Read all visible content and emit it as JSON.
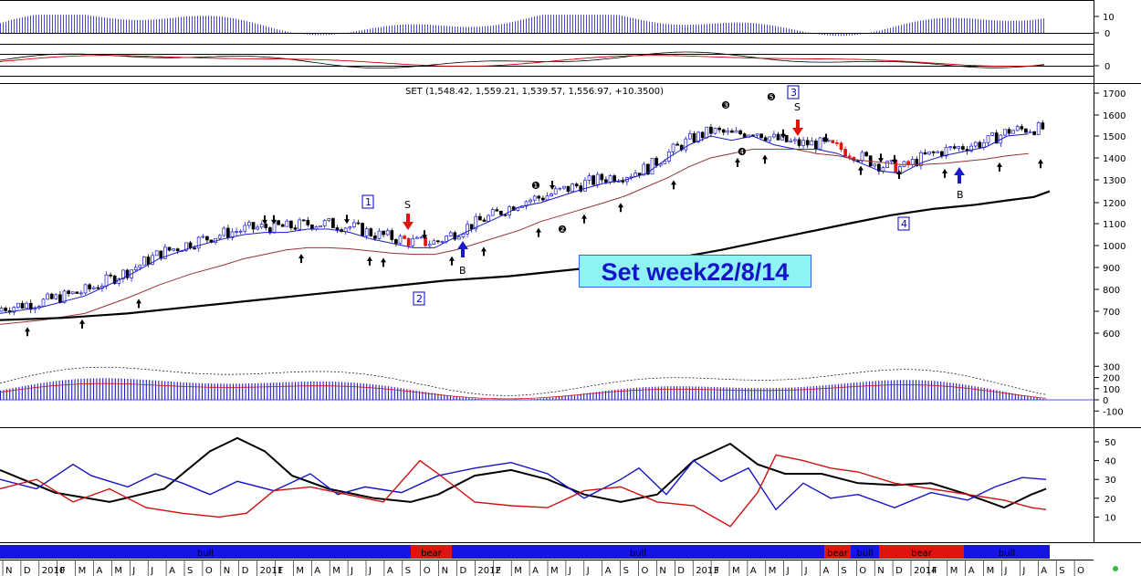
{
  "overlay_title": "Set week22/8/14",
  "chart_data": [
    {
      "type": "bar",
      "panel": "top-histogram",
      "yticks": [
        0,
        10
      ]
    },
    {
      "type": "line",
      "panel": "oscillator",
      "yticks": [
        0
      ],
      "series_colors": [
        "#000000",
        "#cc0000"
      ]
    },
    {
      "type": "line",
      "panel": "price",
      "title": "SET (1,548.42, 1,559.21, 1,539.57, 1,556.97, +10.3500)",
      "ylim": [
        560,
        1720
      ],
      "yticks": [
        600,
        700,
        800,
        900,
        1000,
        1100,
        1200,
        1300,
        1400,
        1500,
        1600,
        1700
      ],
      "x_range": [
        "2009-11",
        "2014-09"
      ],
      "candles_shown": "weekly OHLC (blue = up, black = down, red = bear signal)",
      "series": [
        {
          "color": "#1a1acc",
          "values": [
            [
              0,
              690
            ],
            [
              40,
              720
            ],
            [
              80,
              770
            ],
            [
              120,
              860
            ],
            [
              150,
              940
            ],
            [
              180,
              990
            ],
            [
              210,
              1030
            ],
            [
              230,
              1050
            ],
            [
              250,
              1060
            ],
            [
              270,
              1060
            ],
            [
              290,
              1075
            ],
            [
              310,
              1075
            ],
            [
              330,
              1060
            ],
            [
              350,
              1030
            ],
            [
              370,
              1010
            ],
            [
              390,
              990
            ],
            [
              410,
              990
            ],
            [
              430,
              1040
            ],
            [
              450,
              1085
            ],
            [
              470,
              1130
            ],
            [
              490,
              1180
            ],
            [
              510,
              1200
            ],
            [
              530,
              1230
            ],
            [
              550,
              1260
            ],
            [
              570,
              1285
            ],
            [
              590,
              1300
            ],
            [
              610,
              1330
            ],
            [
              630,
              1400
            ],
            [
              650,
              1460
            ],
            [
              670,
              1500
            ],
            [
              690,
              1480
            ],
            [
              710,
              1500
            ],
            [
              730,
              1460
            ],
            [
              750,
              1440
            ],
            [
              770,
              1440
            ],
            [
              790,
              1420
            ],
            [
              810,
              1380
            ],
            [
              830,
              1340
            ],
            [
              850,
              1330
            ],
            [
              870,
              1380
            ],
            [
              890,
              1410
            ],
            [
              910,
              1430
            ],
            [
              930,
              1450
            ],
            [
              950,
              1500
            ],
            [
              970,
              1510
            ]
          ]
        },
        {
          "color": "#993333",
          "values": [
            [
              0,
              640
            ],
            [
              40,
              660
            ],
            [
              80,
              690
            ],
            [
              120,
              760
            ],
            [
              150,
              820
            ],
            [
              180,
              870
            ],
            [
              210,
              910
            ],
            [
              230,
              940
            ],
            [
              250,
              960
            ],
            [
              270,
              980
            ],
            [
              290,
              990
            ],
            [
              310,
              990
            ],
            [
              330,
              985
            ],
            [
              350,
              975
            ],
            [
              370,
              965
            ],
            [
              390,
              960
            ],
            [
              410,
              960
            ],
            [
              430,
              980
            ],
            [
              450,
              1010
            ],
            [
              470,
              1040
            ],
            [
              490,
              1070
            ],
            [
              510,
              1110
            ],
            [
              530,
              1140
            ],
            [
              550,
              1170
            ],
            [
              570,
              1200
            ],
            [
              590,
              1230
            ],
            [
              610,
              1270
            ],
            [
              630,
              1310
            ],
            [
              650,
              1360
            ],
            [
              670,
              1400
            ],
            [
              690,
              1420
            ],
            [
              710,
              1440
            ],
            [
              730,
              1440
            ],
            [
              750,
              1440
            ],
            [
              770,
              1420
            ],
            [
              790,
              1410
            ],
            [
              810,
              1390
            ],
            [
              830,
              1380
            ],
            [
              850,
              1370
            ],
            [
              870,
              1370
            ],
            [
              890,
              1375
            ],
            [
              910,
              1385
            ],
            [
              930,
              1395
            ],
            [
              950,
              1410
            ],
            [
              970,
              1420
            ]
          ]
        },
        {
          "color": "#000000",
          "values": [
            [
              0,
              660
            ],
            [
              60,
              670
            ],
            [
              120,
              690
            ],
            [
              180,
              720
            ],
            [
              240,
              750
            ],
            [
              300,
              780
            ],
            [
              360,
              810
            ],
            [
              420,
              840
            ],
            [
              480,
              860
            ],
            [
              540,
              890
            ],
            [
              600,
              920
            ],
            [
              640,
              945
            ],
            [
              680,
              980
            ],
            [
              720,
              1020
            ],
            [
              760,
              1060
            ],
            [
              800,
              1100
            ],
            [
              840,
              1140
            ],
            [
              880,
              1170
            ],
            [
              920,
              1190
            ],
            [
              950,
              1210
            ],
            [
              975,
              1225
            ],
            [
              990,
              1250
            ]
          ]
        }
      ],
      "annotations": [
        "1",
        "2",
        "3",
        "4",
        "S",
        "S",
        "B",
        "B"
      ],
      "wave_labels": [
        "❶",
        "❷",
        "❸",
        "❹",
        "❺"
      ]
    },
    {
      "type": "bar",
      "panel": "macd",
      "ylim": [
        -130,
        320
      ],
      "yticks": [
        -100,
        0,
        100,
        200,
        300
      ]
    },
    {
      "type": "line",
      "panel": "dmi",
      "ylim": [
        0,
        55
      ],
      "yticks": [
        10,
        20,
        30,
        40,
        50
      ],
      "series_colors": [
        "#000000",
        "#1414c8",
        "#d01010"
      ]
    }
  ],
  "bands": [
    {
      "label": "bull",
      "color": "#1414e6",
      "from": 0,
      "to": 450
    },
    {
      "label": "bear",
      "color": "#e0140c",
      "from": 450,
      "to": 495
    },
    {
      "label": "bull",
      "color": "#1414e6",
      "from": 495,
      "to": 903
    },
    {
      "label": "bear",
      "color": "#e0140c",
      "from": 903,
      "to": 932
    },
    {
      "label": "bull",
      "color": "#1414e6",
      "from": 932,
      "to": 963
    },
    {
      "label": "bear",
      "color": "#e0140c",
      "from": 963,
      "to": 1056
    },
    {
      "label": "bull",
      "color": "#1414e6",
      "from": 1056,
      "to": 1150
    }
  ],
  "months": [
    "N",
    "D",
    "2010",
    "F",
    "M",
    "A",
    "M",
    "J",
    "J",
    "A",
    "S",
    "O",
    "N",
    "D",
    "2011",
    "F",
    "M",
    "A",
    "M",
    "J",
    "J",
    "A",
    "S",
    "O",
    "N",
    "D",
    "2012",
    "F",
    "M",
    "A",
    "M",
    "J",
    "J",
    "A",
    "S",
    "O",
    "N",
    "D",
    "2013",
    "F",
    "M",
    "A",
    "M",
    "J",
    "J",
    "A",
    "S",
    "O",
    "N",
    "D",
    "2014",
    "F",
    "M",
    "A",
    "M",
    "J",
    "J",
    "A",
    "S",
    "O"
  ]
}
